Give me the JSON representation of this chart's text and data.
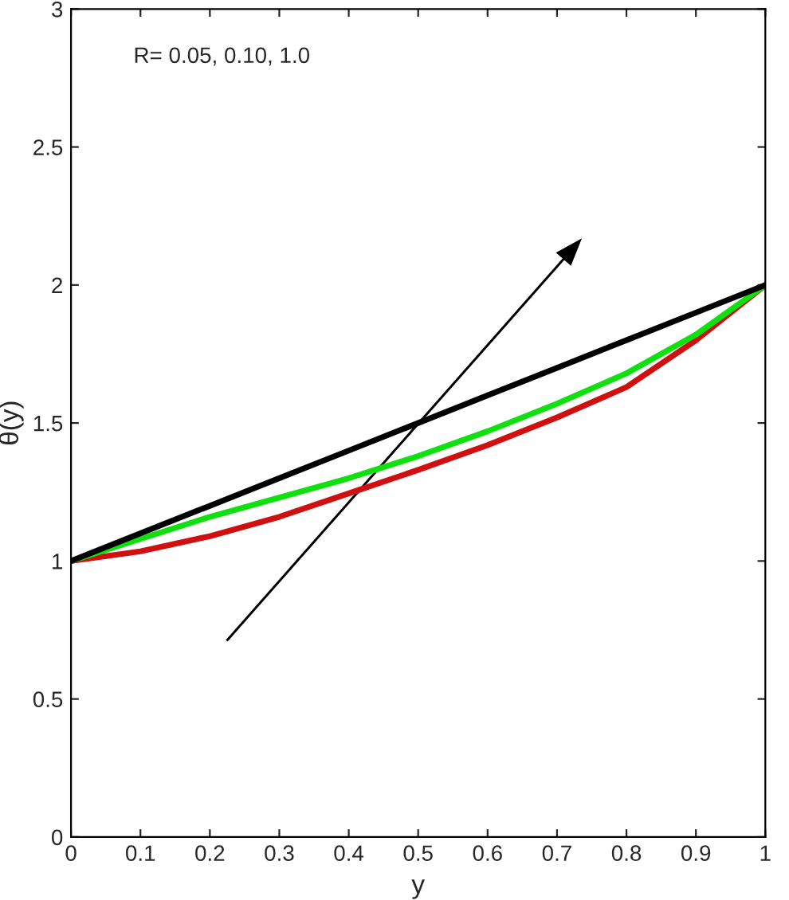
{
  "chart_data": {
    "type": "line",
    "xlabel": "y",
    "ylabel": "θ(y)",
    "x": [
      0,
      0.1,
      0.2,
      0.3,
      0.4,
      0.5,
      0.6,
      0.7,
      0.8,
      0.9,
      1
    ],
    "series": [
      {
        "color": "#d01010",
        "values": [
          1,
          1.035,
          1.09,
          1.16,
          1.245,
          1.33,
          1.42,
          1.52,
          1.63,
          1.8,
          2
        ]
      },
      {
        "color": "#10e010",
        "values": [
          1,
          1.08,
          1.16,
          1.23,
          1.3,
          1.38,
          1.47,
          1.57,
          1.68,
          1.82,
          2
        ]
      },
      {
        "color": "#000000",
        "values": [
          1,
          1.1,
          1.2,
          1.3,
          1.4,
          1.5,
          1.6,
          1.7,
          1.8,
          1.9,
          2
        ]
      }
    ],
    "annotations": [
      "R= 0.05, 0.10, 1.0"
    ],
    "xlim": [
      0,
      1
    ],
    "ylim": [
      0,
      3
    ],
    "xticks": [
      0,
      0.1,
      0.2,
      0.3,
      0.4,
      0.5,
      0.6,
      0.7,
      0.8,
      0.9,
      1
    ],
    "yticks": [
      0,
      0.5,
      1,
      1.5,
      2,
      2.5,
      3
    ],
    "grid": false,
    "legend": false,
    "marker": "none",
    "line_style": "solid"
  }
}
